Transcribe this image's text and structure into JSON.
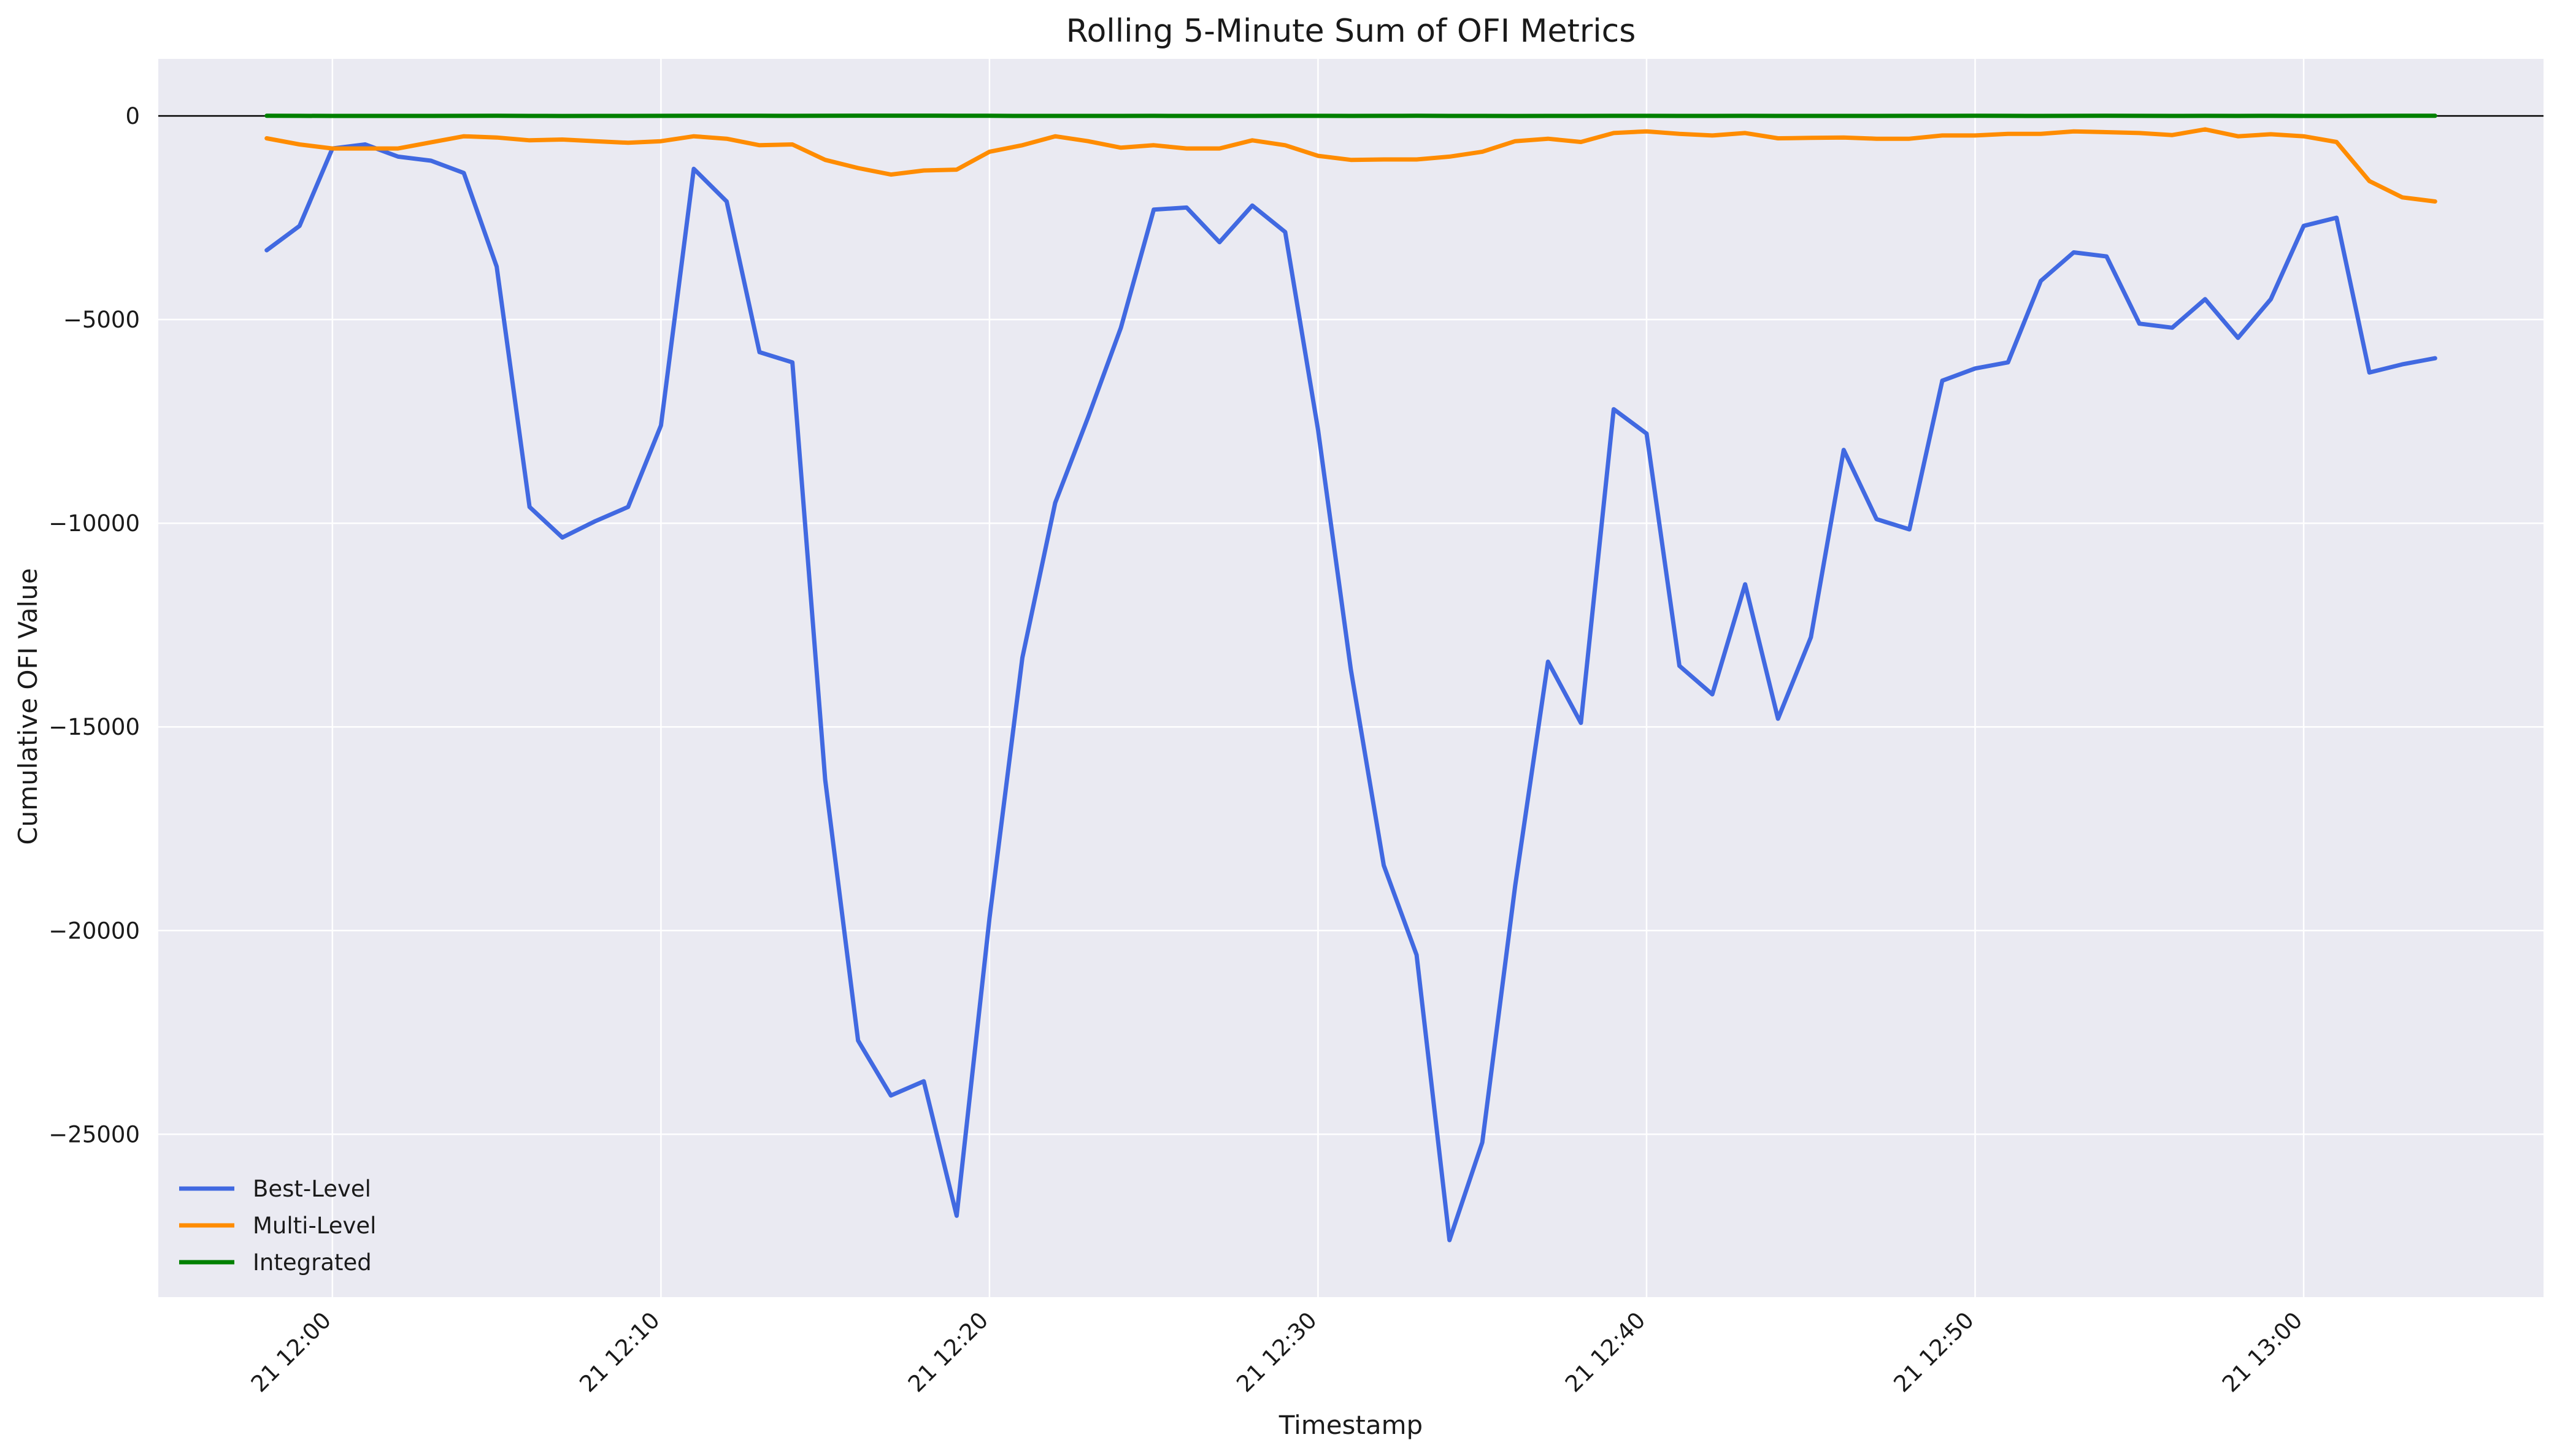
{
  "chart_data": {
    "type": "line",
    "title": "Rolling 5-Minute Sum of OFI Metrics",
    "xlabel": "Timestamp",
    "ylabel": "Cumulative OFI Value",
    "x_start": "21 11:58",
    "x_step_minutes": 1,
    "x_tick_labels": [
      "21 12:00",
      "21 12:10",
      "21 12:20",
      "21 12:30",
      "21 12:40",
      "21 12:50",
      "21 13:00"
    ],
    "y_ticks": [
      0,
      -5000,
      -10000,
      -15000,
      -20000,
      -25000
    ],
    "ylim": [
      -29000,
      1400
    ],
    "grid": true,
    "legend_position": "lower-left",
    "series": [
      {
        "name": "Best-Level",
        "color": "#4169e1",
        "values": [
          -3300,
          -2700,
          -800,
          -700,
          -1000,
          -1100,
          -1400,
          -3700,
          -9600,
          -10350,
          -9950,
          -9600,
          -7600,
          -1300,
          -2100,
          -5800,
          -6050,
          -16300,
          -22700,
          -24050,
          -23700,
          -27000,
          -19700,
          -13300,
          -9500,
          -7400,
          -5200,
          -2300,
          -2250,
          -3100,
          -2200,
          -2850,
          -7700,
          -13600,
          -18400,
          -20600,
          -27600,
          -25200,
          -18900,
          -13400,
          -14900,
          -7200,
          -7800,
          -13500,
          -14200,
          -11500,
          -14800,
          -12800,
          -8200,
          -9900,
          -10150,
          -6500,
          -6200,
          -6050,
          -4050,
          -3350,
          -3450,
          -5100,
          -5200,
          -4500,
          -5450,
          -4500,
          -2700,
          -2500,
          -6300,
          -6100,
          -5950
        ]
      },
      {
        "name": "Multi-Level",
        "color": "#ff8c00",
        "values": [
          -550,
          -700,
          -800,
          -800,
          -800,
          -650,
          -500,
          -530,
          -600,
          -580,
          -620,
          -660,
          -620,
          -500,
          -560,
          -720,
          -700,
          -1080,
          -1280,
          -1440,
          -1340,
          -1320,
          -880,
          -720,
          -500,
          -620,
          -780,
          -720,
          -800,
          -800,
          -600,
          -720,
          -980,
          -1080,
          -1070,
          -1070,
          -1000,
          -880,
          -620,
          -560,
          -640,
          -420,
          -380,
          -440,
          -480,
          -420,
          -550,
          -540,
          -530,
          -560,
          -560,
          -480,
          -480,
          -440,
          -440,
          -380,
          -400,
          -420,
          -470,
          -330,
          -500,
          -450,
          -500,
          -640,
          -1600,
          -2000,
          -2100
        ]
      },
      {
        "name": "Integrated",
        "color": "#008000",
        "values": [
          2,
          1,
          0,
          -1,
          -1,
          0,
          1,
          2,
          0,
          -2,
          -1,
          0,
          1,
          2,
          3,
          2,
          1,
          3,
          5,
          6,
          5,
          4,
          2,
          0,
          -1,
          -1,
          0,
          1,
          0,
          -1,
          0,
          1,
          1,
          0,
          1,
          2,
          0,
          -1,
          -2,
          -1,
          0,
          1,
          1,
          0,
          0,
          1,
          0,
          -1,
          0,
          0,
          1,
          1,
          2,
          1,
          0,
          1,
          2,
          1,
          0,
          1,
          0,
          1,
          0,
          0,
          1,
          2,
          2
        ]
      }
    ]
  }
}
